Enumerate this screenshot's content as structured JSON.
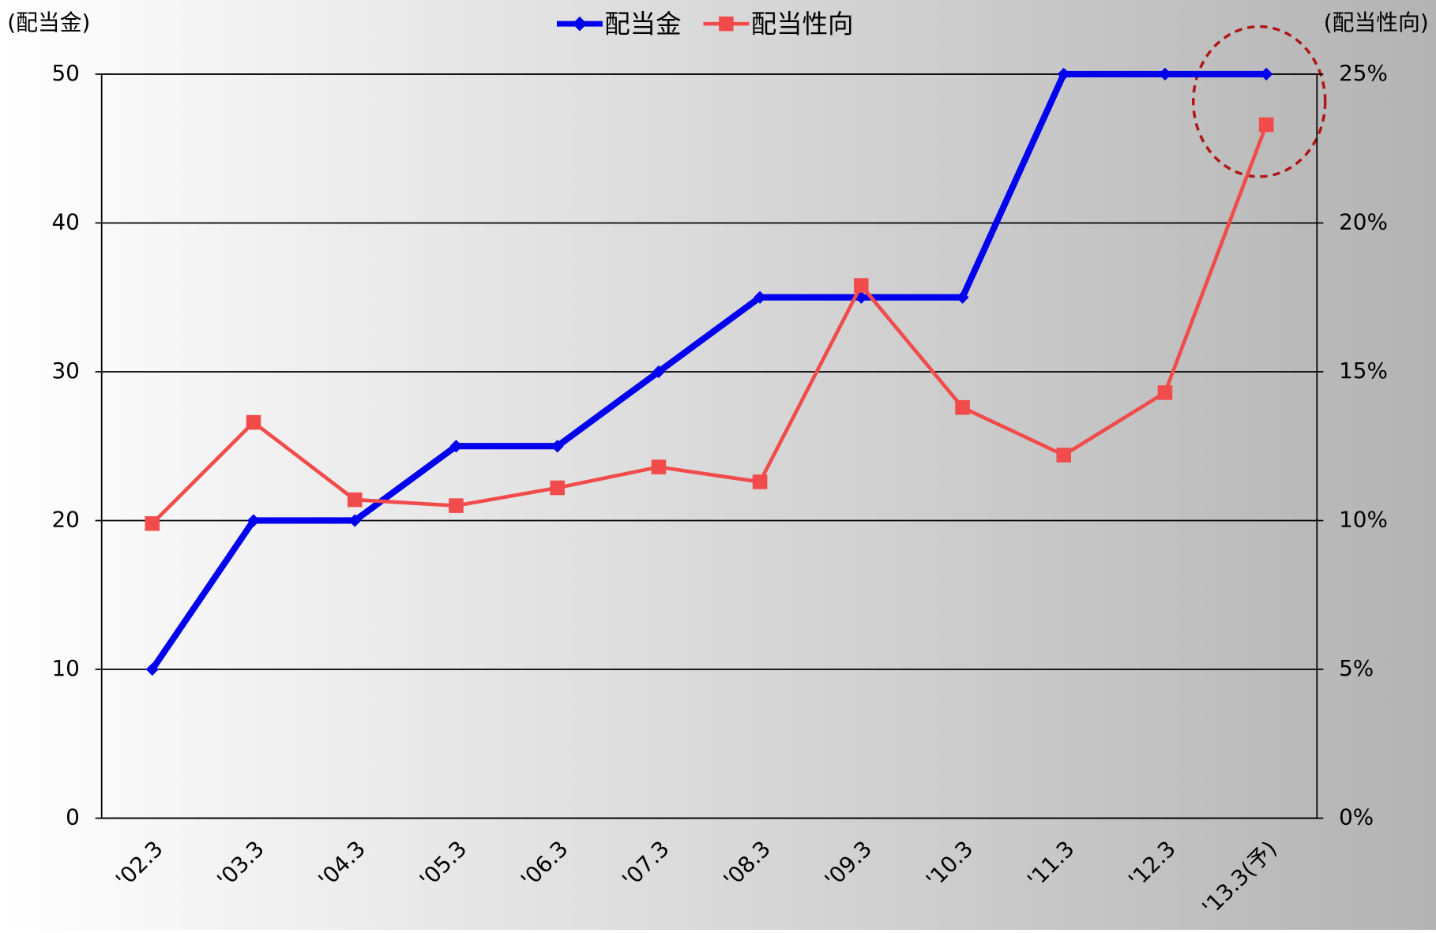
{
  "chart_data": {
    "type": "line",
    "y_label": "(配当金)",
    "y2_label": "(配当性向)",
    "categories": [
      "'02.3",
      "'03.3",
      "'04.3",
      "'05.3",
      "'06.3",
      "'07.3",
      "'08.3",
      "'09.3",
      "'10.3",
      "'11.3",
      "'12.3",
      "'13.3(予)"
    ],
    "series": [
      {
        "name": "配当金",
        "color": "#0000ee",
        "marker": "diamond",
        "values": [
          10,
          20,
          20,
          25,
          25,
          30,
          35,
          35,
          35,
          50,
          50,
          50
        ]
      },
      {
        "name": "配当性向",
        "color": "#f24b4b",
        "marker": "square",
        "axis": "y2",
        "values": [
          9.9,
          13.3,
          10.7,
          10.5,
          11.1,
          11.8,
          11.3,
          17.9,
          13.8,
          12.2,
          14.3,
          23.3
        ]
      }
    ],
    "ylim": [
      0,
      50
    ],
    "yticks": [
      0,
      10,
      20,
      30,
      40,
      50
    ],
    "y2lim": [
      0,
      25
    ],
    "y2ticks": [
      {
        "value": 0,
        "label": "0%"
      },
      {
        "value": 5,
        "label": "5%"
      },
      {
        "value": 10,
        "label": "10%"
      },
      {
        "value": 15,
        "label": "15%"
      },
      {
        "value": 20,
        "label": "20%"
      },
      {
        "value": 25,
        "label": "25%"
      }
    ],
    "grid": true,
    "legend": "top"
  }
}
